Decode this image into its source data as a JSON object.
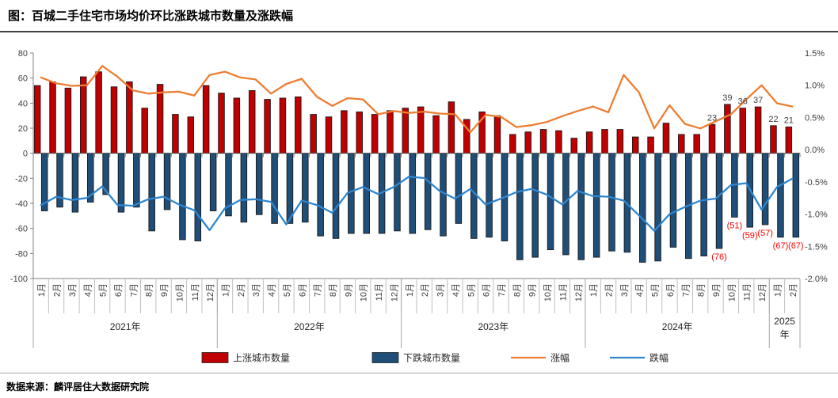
{
  "header": {
    "title": "图：百城二手住宅市场均价环比涨跌城市数量及涨跌幅"
  },
  "footer": {
    "source": "数据来源：麟评居住大数据研究院"
  },
  "chart_data": {
    "type": "combo-bar-line",
    "title": "图：百城二手住宅市场均价环比涨跌城市数量及涨跌幅",
    "years": [
      {
        "label": "2021年",
        "months": 12
      },
      {
        "label": "2022年",
        "months": 12
      },
      {
        "label": "2023年",
        "months": 12
      },
      {
        "label": "2024年",
        "months": 12
      },
      {
        "label": "2025年",
        "months": 2
      }
    ],
    "month_suffix": "月",
    "left_axis": {
      "max": 80,
      "min": -100,
      "step": 20,
      "labels": [
        "80",
        "60",
        "40",
        "20",
        "0",
        "-20",
        "-40",
        "-60",
        "-80",
        "-100"
      ]
    },
    "right_axis": {
      "max": 1.5,
      "min": -2.0,
      "labels": [
        "1.5%",
        "1.0%",
        "0.5%",
        "0.0%",
        "-0.5%",
        "-1.0%",
        "-1.5%",
        "-2.0%"
      ]
    },
    "grid": false,
    "legend_position": "bottom",
    "series": [
      {
        "name": "上涨城市数量",
        "type": "bar",
        "axis": "left",
        "color": "#c00000",
        "values": [
          54,
          57,
          52,
          61,
          65,
          53,
          57,
          36,
          55,
          31,
          29,
          54,
          48,
          44,
          50,
          43,
          44,
          45,
          31,
          29,
          34,
          33,
          31,
          34,
          36,
          37,
          30,
          41,
          27,
          33,
          30,
          15,
          17,
          19,
          18,
          12,
          17,
          19,
          19,
          13,
          13,
          24,
          15,
          15,
          23,
          39,
          36,
          37,
          22,
          21
        ]
      },
      {
        "name": "下跌城市数量",
        "type": "bar",
        "axis": "left",
        "color": "#1f4e79",
        "values": [
          -46,
          -43,
          -47,
          -39,
          -33,
          -47,
          -43,
          -62,
          -45,
          -69,
          -70,
          -46,
          -50,
          -55,
          -49,
          -56,
          -56,
          -55,
          -66,
          -68,
          -64,
          -64,
          -64,
          -62,
          -64,
          -61,
          -66,
          -56,
          -68,
          -67,
          -70,
          -85,
          -83,
          -77,
          -81,
          -85,
          -83,
          -78,
          -79,
          -87,
          -86,
          -75,
          -84,
          -82,
          -76,
          -51,
          -59,
          -57,
          -67,
          -67
        ]
      },
      {
        "name": "涨幅",
        "type": "line",
        "axis": "right",
        "color": "#ed7d31",
        "values": [
          1.12,
          1.03,
          0.99,
          1.0,
          1.3,
          1.13,
          0.92,
          0.87,
          0.89,
          0.9,
          0.84,
          1.16,
          1.21,
          1.12,
          1.09,
          0.87,
          1.02,
          1.1,
          0.82,
          0.68,
          0.8,
          0.78,
          0.55,
          0.6,
          0.57,
          0.59,
          0.56,
          0.55,
          0.27,
          0.54,
          0.51,
          0.35,
          0.38,
          0.43,
          0.52,
          0.6,
          0.67,
          0.58,
          1.16,
          0.89,
          0.33,
          0.69,
          0.4,
          0.33,
          0.44,
          0.55,
          0.78,
          1.0,
          0.72,
          0.67
        ]
      },
      {
        "name": "跌幅",
        "type": "line",
        "axis": "right",
        "color": "#2e86d0",
        "values": [
          -0.86,
          -0.73,
          -0.78,
          -0.75,
          -0.57,
          -0.86,
          -0.87,
          -0.77,
          -0.73,
          -0.85,
          -0.94,
          -1.25,
          -0.91,
          -0.78,
          -0.77,
          -0.81,
          -1.16,
          -0.79,
          -0.86,
          -0.98,
          -0.67,
          -0.58,
          -0.69,
          -0.58,
          -0.42,
          -0.44,
          -0.64,
          -0.76,
          -0.61,
          -0.85,
          -0.76,
          -0.66,
          -0.61,
          -0.7,
          -0.85,
          -0.64,
          -0.72,
          -0.73,
          -0.79,
          -1.02,
          -1.26,
          -1.0,
          -0.89,
          -0.79,
          -0.76,
          -0.55,
          -0.52,
          -0.93,
          -0.58,
          -0.45
        ]
      }
    ],
    "bar_value_labels": {
      "up_color": "#404040",
      "down_color": "#ff0000",
      "up": {
        "44": "23",
        "45": "39",
        "46": "36",
        "47": "37",
        "48": "22",
        "49": "21"
      },
      "down": {
        "44": "(76)",
        "45": "(51)",
        "46": "(59)",
        "47": "(57)",
        "48": "(67)",
        "49": "(67)"
      }
    }
  }
}
